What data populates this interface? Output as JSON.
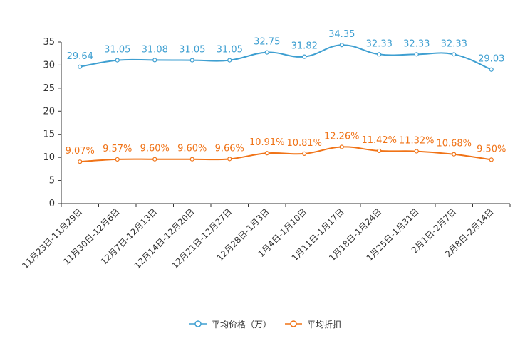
{
  "chart_data": {
    "type": "line",
    "categories": [
      "11月23日-11月29日",
      "11月30日-12月6日",
      "12月7日-12月13日",
      "12月14日-12月20日",
      "12月21日-12月27日",
      "12月28日-1月3日",
      "1月4日-1月10日",
      "1月11日-1月17日",
      "1月18日-1月24日",
      "1月25日-1月31日",
      "2月1日-2月7日",
      "2月8日-2月14日"
    ],
    "series": [
      {
        "name": "平均价格（万）",
        "color": "#3e9fd1",
        "values": [
          29.64,
          31.05,
          31.08,
          31.05,
          31.05,
          32.75,
          31.82,
          34.35,
          32.33,
          32.33,
          32.33,
          29.03
        ],
        "labels": [
          "29.64",
          "31.05",
          "31.08",
          "31.05",
          "31.05",
          "32.75",
          "31.82",
          "34.35",
          "32.33",
          "32.33",
          "32.33",
          "29.03"
        ]
      },
      {
        "name": "平均折扣",
        "color": "#f07317",
        "values": [
          9.07,
          9.57,
          9.6,
          9.6,
          9.66,
          10.91,
          10.81,
          12.26,
          11.42,
          11.32,
          10.68,
          9.5
        ],
        "labels": [
          "9.07%",
          "9.57%",
          "9.60%",
          "9.60%",
          "9.66%",
          "10.91%",
          "10.81%",
          "12.26%",
          "11.42%",
          "11.32%",
          "10.68%",
          "9.50%"
        ]
      }
    ],
    "y_ticks": [
      "0",
      "5",
      "10",
      "15",
      "20",
      "25",
      "30",
      "35"
    ],
    "ylim": [
      0,
      35
    ],
    "title": "",
    "xlabel": "",
    "ylabel": "",
    "legend_position": "bottom-center",
    "grid": false
  }
}
